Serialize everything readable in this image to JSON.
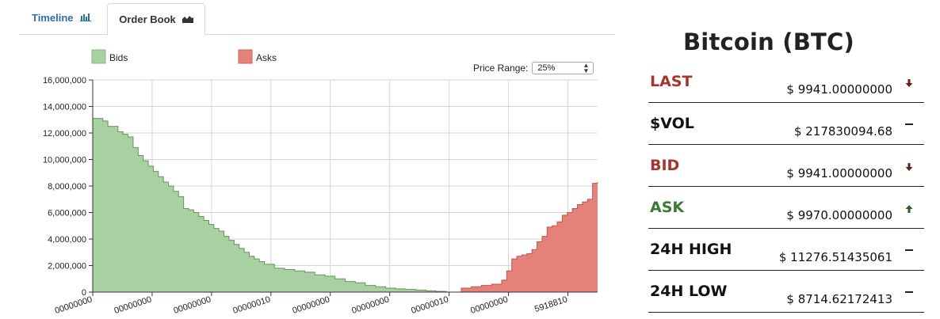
{
  "tabs": [
    {
      "label": "Timeline",
      "icon": "bar-chart-icon"
    },
    {
      "label": "Order Book",
      "icon": "area-chart-icon"
    }
  ],
  "price_range": {
    "label": "Price Range:",
    "value": "25%"
  },
  "panel": {
    "title": "Bitcoin (BTC)",
    "stats": [
      {
        "label": "LAST",
        "value": "$ 9941.00000000",
        "trend": "down",
        "color": "#a7332e"
      },
      {
        "label": "$VOL",
        "value": "$ 217830094.68",
        "trend": "flat",
        "color": "#111111"
      },
      {
        "label": "BID",
        "value": "$ 9941.00000000",
        "trend": "down",
        "color": "#a7332e"
      },
      {
        "label": "ASK",
        "value": "$ 9970.00000000",
        "trend": "up",
        "color": "#3b7a34"
      },
      {
        "label": "24H HIGH",
        "value": "$ 11276.51435061",
        "trend": "flat",
        "color": "#111111"
      },
      {
        "label": "24H LOW",
        "value": "$ 8714.62172413",
        "trend": "flat",
        "color": "#111111"
      }
    ]
  },
  "chart_data": {
    "type": "area",
    "legend": [
      {
        "name": "Bids",
        "color": "#a8d1a1"
      },
      {
        "name": "Asks",
        "color": "#e48279"
      }
    ],
    "ylim": [
      0,
      16000000
    ],
    "yticks": [
      "0",
      "2,000,000",
      "4,000,000",
      "6,000,000",
      "8,000,000",
      "10,000,000",
      "12,000,000",
      "14,000,000",
      "16,000,000"
    ],
    "xticks": [
      "00000000",
      "00000000",
      "00000000",
      "00000010",
      "00000000",
      "00000000",
      "00000010",
      "00000000",
      "5918810"
    ],
    "xlim": [
      0,
      100
    ],
    "series": [
      {
        "name": "Bids",
        "x": [
          0,
          2,
          3,
          5,
          6,
          7,
          8,
          9,
          10,
          11,
          12,
          13,
          14,
          15,
          16,
          17,
          18,
          19,
          20,
          21,
          22,
          23,
          24,
          25,
          26,
          27,
          28,
          29,
          30,
          31,
          32,
          33,
          34,
          36,
          38,
          40,
          42,
          44,
          46,
          48,
          50,
          52,
          54,
          56,
          58,
          60,
          62,
          64,
          66,
          68,
          70,
          71
        ],
        "y": [
          13100000,
          12900000,
          12500000,
          12100000,
          11900000,
          11700000,
          10900000,
          10300000,
          9900000,
          9500000,
          9100000,
          8700000,
          8300000,
          8000000,
          7600000,
          7200000,
          6300000,
          6200000,
          6000000,
          5700000,
          5400000,
          5100000,
          4800000,
          4600000,
          4200000,
          3900000,
          3600000,
          3300000,
          3000000,
          2700000,
          2500000,
          2300000,
          2100000,
          1800000,
          1700000,
          1600000,
          1500000,
          1300000,
          1200000,
          1000000,
          800000,
          700000,
          500000,
          400000,
          300000,
          250000,
          200000,
          150000,
          100000,
          50000,
          0,
          0
        ]
      },
      {
        "name": "Asks",
        "x": [
          71,
          73,
          75,
          77,
          79,
          81,
          82,
          83,
          84,
          85,
          86,
          87,
          88,
          89,
          90,
          91,
          92,
          93,
          94,
          95,
          96,
          97,
          98,
          99,
          100
        ],
        "y": [
          0,
          300000,
          400000,
          500000,
          600000,
          900000,
          1600000,
          2500000,
          2700000,
          2800000,
          2900000,
          3200000,
          3800000,
          4200000,
          4900000,
          5000000,
          5300000,
          5800000,
          6000000,
          6300000,
          6600000,
          6800000,
          7000000,
          8200000,
          8300000
        ]
      }
    ]
  }
}
